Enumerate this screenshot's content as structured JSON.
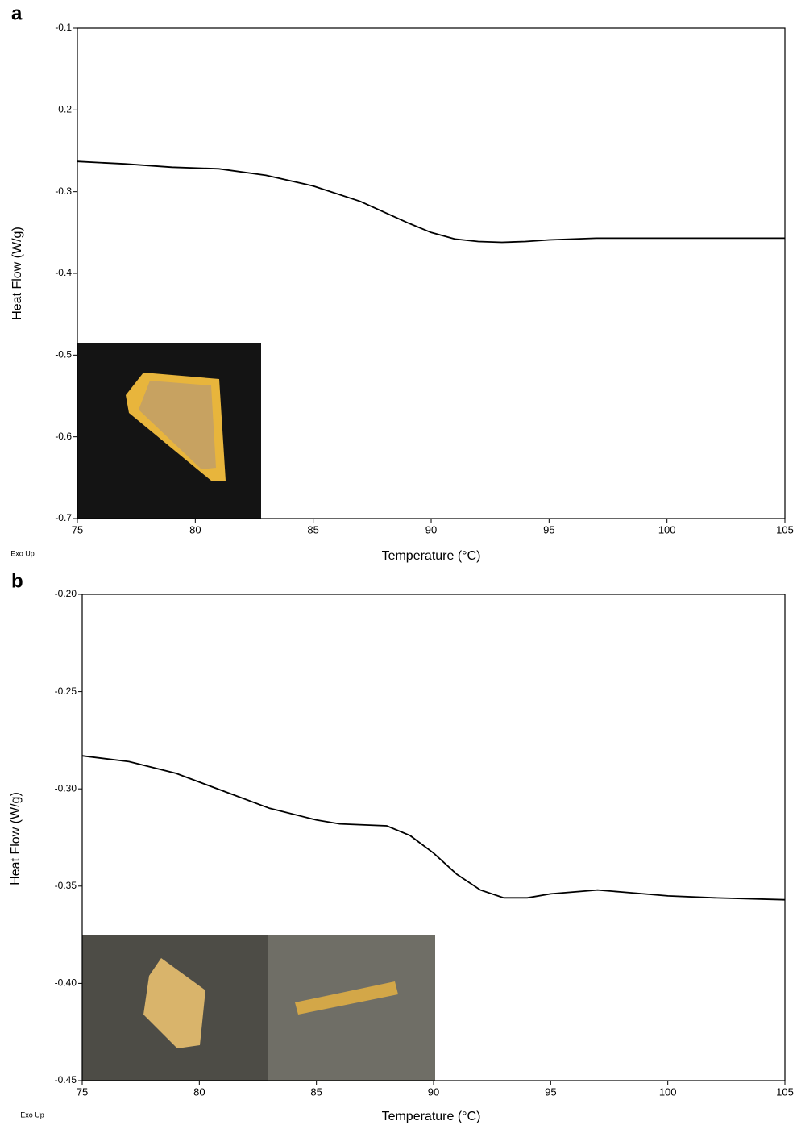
{
  "chart_data": [
    {
      "type": "line",
      "panel_label": "a",
      "annotation": "Exo Up",
      "x_label": "Temperature (°C)",
      "y_label": "Heat Flow (W/g)",
      "x": [
        75,
        77,
        79,
        81,
        83,
        85,
        87,
        89,
        90,
        91,
        92,
        93,
        94,
        95,
        97,
        100,
        105
      ],
      "values": [
        -0.263,
        -0.266,
        -0.27,
        -0.272,
        -0.28,
        -0.293,
        -0.312,
        -0.338,
        -0.35,
        -0.358,
        -0.361,
        -0.362,
        -0.361,
        -0.359,
        -0.357,
        -0.357,
        -0.357
      ],
      "color": "#000000",
      "xlim": [
        75,
        105
      ],
      "xticks": [
        75,
        80,
        85,
        90,
        95,
        100,
        105
      ],
      "ylim": [
        -0.7,
        -0.1
      ],
      "yticks": [
        -0.1,
        -0.2,
        -0.3,
        -0.4,
        -0.5,
        -0.6,
        -0.7
      ]
    },
    {
      "type": "line",
      "panel_label": "b",
      "annotation": "Exo Up",
      "x_label": "Temperature (°C)",
      "y_label": "Heat Flow (W/g)",
      "x": [
        75,
        77,
        79,
        81,
        83,
        85,
        86,
        88,
        89,
        90,
        91,
        92,
        93,
        94,
        95,
        96,
        97,
        98,
        100,
        102,
        105
      ],
      "values": [
        -0.283,
        -0.286,
        -0.292,
        -0.301,
        -0.31,
        -0.316,
        -0.318,
        -0.319,
        -0.324,
        -0.333,
        -0.344,
        -0.352,
        -0.356,
        -0.356,
        -0.354,
        -0.353,
        -0.352,
        -0.353,
        -0.355,
        -0.356,
        -0.357
      ],
      "color": "#000000",
      "xlim": [
        75,
        105
      ],
      "xticks": [
        75,
        80,
        85,
        90,
        95,
        100,
        105
      ],
      "ylim": [
        -0.45,
        -0.2
      ],
      "yticks": [
        {
          "value": -0.2,
          "label": "-0.20"
        },
        -0.25,
        {
          "value": -0.3,
          "label": "-0.30"
        },
        -0.35,
        {
          "value": -0.4,
          "label": "-0.40"
        },
        -0.45
      ]
    }
  ]
}
